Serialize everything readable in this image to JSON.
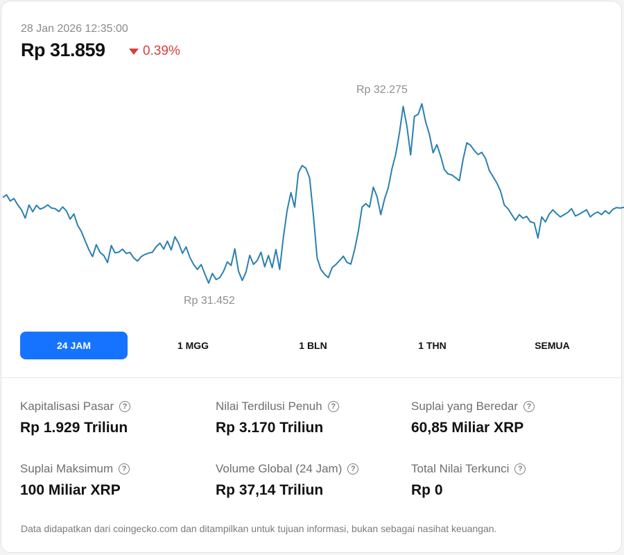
{
  "header": {
    "timestamp": "28 Jan 2026 12:35:00",
    "price": "Rp 31.859",
    "change": "0.39%",
    "change_color": "#d6403a"
  },
  "chart_labels": {
    "high": "Rp 32.275",
    "low": "Rp 31.452"
  },
  "chart_data": {
    "type": "line",
    "color": "#2a7fb0",
    "grid": false,
    "ylim": [
      31452,
      32275
    ],
    "values": [
      31846,
      31858,
      31830,
      31841,
      31812,
      31790,
      31752,
      31812,
      31781,
      31810,
      31793,
      31800,
      31812,
      31798,
      31795,
      31782,
      31803,
      31785,
      31748,
      31771,
      31720,
      31692,
      31650,
      31610,
      31578,
      31632,
      31597,
      31583,
      31551,
      31628,
      31595,
      31598,
      31612,
      31592,
      31597,
      31572,
      31558,
      31578,
      31588,
      31594,
      31598,
      31623,
      31639,
      31612,
      31648,
      31608,
      31668,
      31638,
      31593,
      31622,
      31574,
      31542,
      31520,
      31542,
      31499,
      31458,
      31502,
      31474,
      31483,
      31512,
      31554,
      31538,
      31613,
      31512,
      31470,
      31508,
      31584,
      31543,
      31560,
      31598,
      31532,
      31583,
      31528,
      31610,
      31520,
      31668,
      31788,
      31868,
      31802,
      31958,
      31990,
      31978,
      31934,
      31765,
      31572,
      31520,
      31498,
      31483,
      31528,
      31542,
      31560,
      31580,
      31552,
      31544,
      31608,
      31692,
      31802,
      31818,
      31802,
      31892,
      31850,
      31768,
      31838,
      31890,
      31975,
      32040,
      32138,
      32258,
      32168,
      32038,
      32213,
      32222,
      32270,
      32188,
      32132,
      32048,
      32085,
      32034,
      31972,
      31952,
      31948,
      31935,
      31922,
      32018,
      32093,
      32082,
      32058,
      32040,
      32050,
      32022,
      31968,
      31940,
      31912,
      31875,
      31812,
      31795,
      31768,
      31742,
      31768,
      31752,
      31760,
      31735,
      31731,
      31662,
      31758,
      31735,
      31770,
      31790,
      31772,
      31758,
      31768,
      31778,
      31795,
      31762,
      31770,
      31780,
      31790,
      31758,
      31772,
      31780,
      31768,
      31786,
      31772,
      31792,
      31800,
      31798,
      31801
    ]
  },
  "tabs": [
    {
      "label": "24 JAM",
      "active": true
    },
    {
      "label": "1 MGG",
      "active": false
    },
    {
      "label": "1 BLN",
      "active": false
    },
    {
      "label": "1 THN",
      "active": false
    },
    {
      "label": "SEMUA",
      "active": false
    }
  ],
  "stats": [
    {
      "label": "Kapitalisasi Pasar",
      "value": "Rp 1.929 Triliun"
    },
    {
      "label": "Nilai Terdilusi Penuh",
      "value": "Rp 3.170 Triliun"
    },
    {
      "label": "Suplai yang Beredar",
      "value": "60,85 Miliar XRP"
    },
    {
      "label": "Suplai Maksimum",
      "value": "100 Miliar XRP"
    },
    {
      "label": "Volume Global (24 Jam)",
      "value": "Rp 37,14 Triliun"
    },
    {
      "label": "Total Nilai Terkunci",
      "value": "Rp 0"
    }
  ],
  "help_icon": "question-circle-icon",
  "accent_color": "#1673ff",
  "footer": {
    "disclaimer": "Data didapatkan dari coingecko.com dan ditampilkan untuk tujuan informasi, bukan sebagai nasihat keuangan."
  }
}
